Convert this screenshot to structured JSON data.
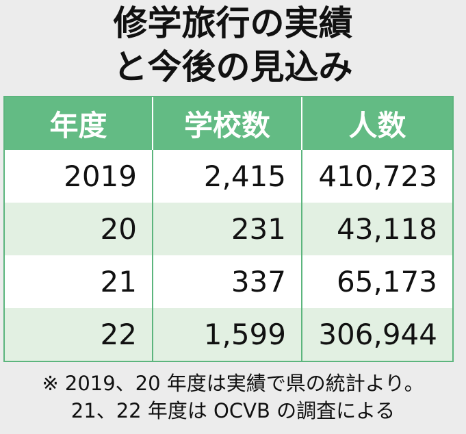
{
  "header": {
    "title_lines": [
      "修学旅行の実績",
      "と今後の見込み"
    ]
  },
  "table": {
    "columns": [
      "年度",
      "学校数",
      "人数"
    ],
    "rows": [
      [
        "2019",
        "2,415",
        "410,723"
      ],
      [
        "20",
        "231",
        "43,118"
      ],
      [
        "21",
        "337",
        "65,173"
      ],
      [
        "22",
        "1,599",
        "306,944"
      ]
    ]
  },
  "footnote": {
    "lines": [
      "※ 2019、20 年度は実績で県の統計より。",
      "21、22 年度は OCVB の調査による"
    ]
  }
}
